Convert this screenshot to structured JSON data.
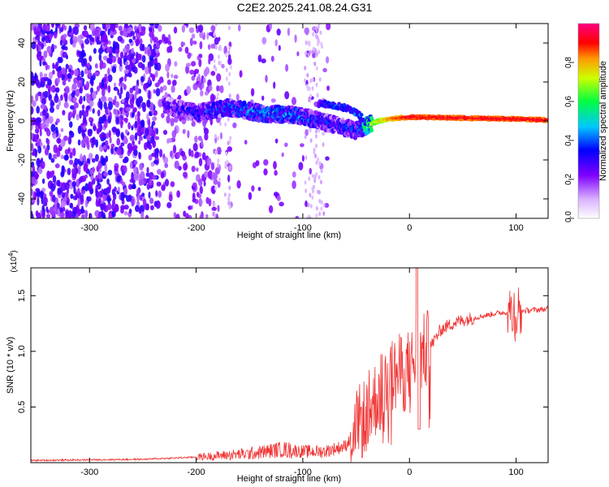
{
  "title": "C2E2.2025.241.08.24.G31",
  "chart_data": [
    {
      "type": "heatmap",
      "title": "C2E2.2025.241.08.24.G31",
      "xlabel": "Height of straight line (km)",
      "ylabel": "Frequency (Hz)",
      "xlim": [
        -355,
        130
      ],
      "ylim": [
        -50,
        50
      ],
      "xticks": [
        -300,
        -200,
        -100,
        0,
        100
      ],
      "yticks": [
        -40,
        -20,
        0,
        20,
        40
      ],
      "colorbar": {
        "label": "Normalized spectral amplitude",
        "range": [
          0,
          1
        ],
        "ticks": [
          0.0,
          0.2,
          0.4,
          0.6,
          0.8
        ],
        "colormap": [
          "#ffffff",
          "#8a2be2",
          "#0000ff",
          "#00ffff",
          "#00ff00",
          "#ffff00",
          "#ff8000",
          "#ff0000",
          "#ff0080"
        ]
      },
      "series": [
        {
          "name": "noise-scatter",
          "x_range": [
            -355,
            -75
          ],
          "amplitude": 0.12
        },
        {
          "name": "signal-track",
          "x": [
            -230,
            -200,
            -170,
            -140,
            -110,
            -90,
            -70,
            -50,
            -35,
            -20,
            0,
            50,
            100,
            130
          ],
          "y": [
            8,
            4,
            7,
            4,
            3,
            1,
            -2,
            -5,
            -1,
            1,
            2,
            1.5,
            1,
            0.5
          ],
          "amplitude": [
            0.3,
            0.35,
            0.4,
            0.45,
            0.45,
            0.4,
            0.35,
            0.4,
            0.7,
            0.85,
            0.95,
            0.95,
            0.95,
            0.95
          ]
        },
        {
          "name": "upper-branch",
          "x": [
            -85,
            -70,
            -55,
            -45
          ],
          "y": [
            9,
            8,
            6,
            2
          ],
          "amplitude": [
            0.3,
            0.35,
            0.35,
            0.4
          ]
        }
      ]
    },
    {
      "type": "line",
      "xlabel": "Height of straight line (km)",
      "ylabel": "SNR (10 * v/v)",
      "yscale_label": "(x10",
      "yscale_exp": "4",
      "yscale_close": ")",
      "xlim": [
        -355,
        130
      ],
      "ylim": [
        0,
        1.75
      ],
      "xticks": [
        -300,
        -200,
        -100,
        0,
        100
      ],
      "yticks": [
        0.5,
        1.0,
        1.5
      ],
      "ytick_labels": [
        "0.5",
        "1.0",
        "1.5"
      ],
      "series": [
        {
          "name": "SNR",
          "color": "#f03030",
          "x": [
            -355,
            -250,
            -200,
            -150,
            -120,
            -100,
            -80,
            -60,
            -50,
            -40,
            -30,
            -20,
            -10,
            0,
            10,
            20,
            30,
            40,
            50,
            60,
            80,
            100,
            130
          ],
          "y": [
            0.02,
            0.03,
            0.05,
            0.08,
            0.12,
            0.1,
            0.1,
            0.15,
            0.3,
            0.45,
            0.6,
            0.75,
            0.8,
            0.85,
            0.95,
            1.05,
            1.2,
            1.25,
            1.28,
            1.3,
            1.34,
            1.36,
            1.38
          ]
        }
      ]
    }
  ]
}
